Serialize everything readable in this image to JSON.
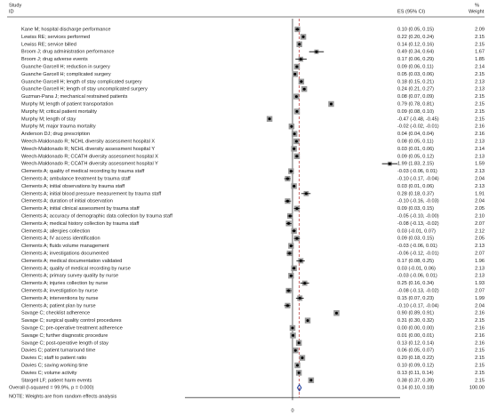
{
  "chart_data": {
    "type": "forest",
    "header": {
      "study": "Study",
      "id": "ID",
      "es": "ES (95% CI)",
      "pct": "%",
      "weight": "Weight"
    },
    "xlim": [
      -2.2,
      2.2
    ],
    "xticks": [
      0
    ],
    "null_color": "#000000",
    "overall_line_color": "#b22222",
    "box_color": "#9a9a9a",
    "diamond_color": "#1f3fa0",
    "rows": [
      {
        "study": "Kane M; hospital discharge performance",
        "es": 0.1,
        "lo": 0.05,
        "hi": 0.15,
        "w": 2.09,
        "es_label": "0.10 (0.05, 0.15)",
        "w_label": "2.09"
      },
      {
        "study": "Lewiss RE; services performed",
        "es": 0.22,
        "lo": 0.2,
        "hi": 0.24,
        "w": 2.15,
        "es_label": "0.22 (0.20, 0.24)",
        "w_label": "2.15"
      },
      {
        "study": "Lewiss RE; service billed",
        "es": 0.14,
        "lo": 0.12,
        "hi": 0.16,
        "w": 2.15,
        "es_label": "0.14 (0.12, 0.16)",
        "w_label": "2.15"
      },
      {
        "study": "Broom J; drug administration performance",
        "es": 0.49,
        "lo": 0.34,
        "hi": 0.64,
        "w": 1.67,
        "es_label": "0.49 (0.34, 0.64)",
        "w_label": "1.67"
      },
      {
        "study": "Broom J; drug adverse events",
        "es": 0.17,
        "lo": 0.06,
        "hi": 0.29,
        "w": 1.85,
        "es_label": "0.17 (0.06, 0.29)",
        "w_label": "1.85"
      },
      {
        "study": "Guanche Garcell H; reduction in surgery",
        "es": 0.09,
        "lo": 0.06,
        "hi": 0.11,
        "w": 2.14,
        "es_label": "0.09 (0.06, 0.11)",
        "w_label": "2.14"
      },
      {
        "study": "Guanche Garcell H; complicated surgery",
        "es": 0.05,
        "lo": 0.03,
        "hi": 0.06,
        "w": 2.15,
        "es_label": "0.05 (0.03, 0.06)",
        "w_label": "2.15"
      },
      {
        "study": "Guanche Garcell H; length of stay complicated surgery",
        "es": 0.18,
        "lo": 0.15,
        "hi": 0.21,
        "w": 2.13,
        "es_label": "0.18 (0.15, 0.21)",
        "w_label": "2.13"
      },
      {
        "study": "Guanche Garcell H; length of stay uncomplicated surgery",
        "es": 0.24,
        "lo": 0.21,
        "hi": 0.27,
        "w": 2.13,
        "es_label": "0.24 (0.21, 0.27)",
        "w_label": "2.13"
      },
      {
        "study": "Guzman-Pana J; mechanical restrained patients",
        "es": 0.08,
        "lo": 0.07,
        "hi": 0.09,
        "w": 2.15,
        "es_label": "0.08 (0.07, 0.09)",
        "w_label": "2.15"
      },
      {
        "study": "Murphy M; length of patient transportation",
        "es": 0.79,
        "lo": 0.78,
        "hi": 0.81,
        "w": 2.15,
        "es_label": "0.79 (0.78, 0.81)",
        "w_label": "2.15"
      },
      {
        "study": "Murphy M; critical patient mortality",
        "es": 0.09,
        "lo": 0.08,
        "hi": 0.1,
        "w": 2.15,
        "es_label": "0.09 (0.08, 0.10)",
        "w_label": "2.15"
      },
      {
        "study": "Murphy M; length of stay",
        "es": -0.47,
        "lo": -0.48,
        "hi": -0.45,
        "w": 2.15,
        "es_label": "-0.47 (-0.48, -0.45)",
        "w_label": "2.15"
      },
      {
        "study": "Murphy M; major trauma mortality",
        "es": -0.02,
        "lo": -0.02,
        "hi": -0.01,
        "w": 2.16,
        "es_label": "-0.02 (-0.02, -0.01)",
        "w_label": "2.16"
      },
      {
        "study": "Anderson DJ; drug prescription",
        "es": 0.04,
        "lo": 0.04,
        "hi": 0.04,
        "w": 2.16,
        "es_label": "0.04 (0.04, 0.04)",
        "w_label": "2.16"
      },
      {
        "study": "Weech-Maldonado R; NCHL diversity assessment hospital X",
        "es": 0.08,
        "lo": 0.05,
        "hi": 0.11,
        "w": 2.13,
        "es_label": "0.08 (0.05, 0.11)",
        "w_label": "2.13"
      },
      {
        "study": "Weech-Maldonado R; NCHL diversity assessment hospital Y",
        "es": 0.03,
        "lo": 0.01,
        "hi": 0.06,
        "w": 2.14,
        "es_label": "0.03 (0.01, 0.06)",
        "w_label": "2.14"
      },
      {
        "study": "Weech-Maldonado R; CCATH diversity assessment hospital X",
        "es": 0.09,
        "lo": 0.05,
        "hi": 0.12,
        "w": 2.13,
        "es_label": "0.09 (0.05, 0.12)",
        "w_label": "2.13"
      },
      {
        "study": "Weech-Maldonado R; CCATH diversity assessment hospital Y",
        "es": 1.99,
        "lo": 1.83,
        "hi": 2.15,
        "w": 1.59,
        "es_label": "1.99 (1.83, 2.15)",
        "w_label": "1.59"
      },
      {
        "study": "Clements A; quality of medical recording by trauma staff",
        "es": -0.03,
        "lo": -0.06,
        "hi": 0.01,
        "w": 2.13,
        "es_label": "-0.03 (-0.06, 0.01)",
        "w_label": "2.13"
      },
      {
        "study": "Clements A; ambulance treatment by trauma staff",
        "es": -0.1,
        "lo": -0.17,
        "hi": -0.04,
        "w": 2.04,
        "es_label": "-0.10 (-0.17, -0.04)",
        "w_label": "2.04"
      },
      {
        "study": "Clements A; initial observations by trauma staff",
        "es": 0.03,
        "lo": 0.01,
        "hi": 0.06,
        "w": 2.13,
        "es_label": "0.03 (0.01, 0.06)",
        "w_label": "2.13"
      },
      {
        "study": "Clements A; initial blood pressure measurement by trauma staff",
        "es": 0.28,
        "lo": 0.18,
        "hi": 0.37,
        "w": 1.91,
        "es_label": "0.28 (0.18, 0.37)",
        "w_label": "1.91"
      },
      {
        "study": "Clements A; duration of initial observation",
        "es": -0.1,
        "lo": -0.16,
        "hi": -0.03,
        "w": 2.04,
        "es_label": "-0.10 (-0.16, -0.03)",
        "w_label": "2.04"
      },
      {
        "study": "Clements A; initial clinical assessment by trauma staff",
        "es": 0.09,
        "lo": 0.03,
        "hi": 0.15,
        "w": 2.05,
        "es_label": "0.09 (0.03, 0.15)",
        "w_label": "2.05"
      },
      {
        "study": "Clements A; accuracy of demographic data collection by trauma staff",
        "es": -0.05,
        "lo": -0.1,
        "hi": -0.0,
        "w": 2.1,
        "es_label": "-0.05 (-0.10, -0.00)",
        "w_label": "2.10"
      },
      {
        "study": "Clements A; medical history collection by trauma staff",
        "es": -0.08,
        "lo": -0.13,
        "hi": -0.02,
        "w": 2.07,
        "es_label": "-0.08 (-0.13, -0.02)",
        "w_label": "2.07"
      },
      {
        "study": "Clements A; allergies collection",
        "es": 0.03,
        "lo": -0.01,
        "hi": 0.07,
        "w": 2.12,
        "es_label": "0.03 (-0.01, 0.07)",
        "w_label": "2.12"
      },
      {
        "study": "Clements A; IV access identification",
        "es": 0.09,
        "lo": 0.03,
        "hi": 0.15,
        "w": 2.05,
        "es_label": "0.09 (0.03, 0.15)",
        "w_label": "2.05"
      },
      {
        "study": "Clements A; fluids volume management",
        "es": -0.03,
        "lo": -0.06,
        "hi": 0.01,
        "w": 2.13,
        "es_label": "-0.03 (-0.06, 0.01)",
        "w_label": "2.13"
      },
      {
        "study": "Clements A; investigations documented",
        "es": -0.06,
        "lo": -0.12,
        "hi": -0.01,
        "w": 2.07,
        "es_label": "-0.06 (-0.12, -0.01)",
        "w_label": "2.07"
      },
      {
        "study": "Clements A; medical documentation validated",
        "es": 0.17,
        "lo": 0.08,
        "hi": 0.25,
        "w": 1.96,
        "es_label": "0.17 (0.08, 0.25)",
        "w_label": "1.96"
      },
      {
        "study": "Clements A; quality of medical recording by nurse",
        "es": 0.03,
        "lo": -0.01,
        "hi": 0.06,
        "w": 2.13,
        "es_label": "0.03 (-0.01, 0.06)",
        "w_label": "2.13"
      },
      {
        "study": "Clements A; primary survey quality by nurse",
        "es": -0.03,
        "lo": -0.06,
        "hi": 0.01,
        "w": 2.13,
        "es_label": "-0.03 (-0.06, 0.01)",
        "w_label": "2.13"
      },
      {
        "study": "Clements A; injuries collection by nurse",
        "es": 0.25,
        "lo": 0.16,
        "hi": 0.34,
        "w": 1.93,
        "es_label": "0.25 (0.16, 0.34)",
        "w_label": "1.93"
      },
      {
        "study": "Clements A; investigation by nurse",
        "es": -0.08,
        "lo": -0.13,
        "hi": -0.02,
        "w": 2.07,
        "es_label": "-0.08 (-0.13, -0.02)",
        "w_label": "2.07"
      },
      {
        "study": "Clements A; interventions by nurse",
        "es": 0.15,
        "lo": 0.07,
        "hi": 0.23,
        "w": 1.99,
        "es_label": "0.15 (0.07, 0.23)",
        "w_label": "1.99"
      },
      {
        "study": "Clements A; patient plan by nurse",
        "es": -0.1,
        "lo": -0.17,
        "hi": -0.04,
        "w": 2.04,
        "es_label": "-0.10 (-0.17, -0.04)",
        "w_label": "2.04"
      },
      {
        "study": "Savage C; checklist adherence",
        "es": 0.9,
        "lo": 0.89,
        "hi": 0.91,
        "w": 2.16,
        "es_label": "0.90 (0.89, 0.91)",
        "w_label": "2.16"
      },
      {
        "study": "Savage C; surgical quality control procedures",
        "es": 0.31,
        "lo": 0.3,
        "hi": 0.32,
        "w": 2.15,
        "es_label": "0.31 (0.30, 0.32)",
        "w_label": "2.15"
      },
      {
        "study": "Savage C; pre-operative treatment adherence",
        "es": 0.0,
        "lo": 0.0,
        "hi": 0.0,
        "w": 2.16,
        "es_label": "0.00 (0.00, 0.00)",
        "w_label": "2.16"
      },
      {
        "study": "Savage C; further diagnostic procedure",
        "es": 0.01,
        "lo": 0.0,
        "hi": 0.01,
        "w": 2.16,
        "es_label": "0.01 (0.00, 0.01)",
        "w_label": "2.16"
      },
      {
        "study": "Savage C; post-operative length of stay",
        "es": 0.13,
        "lo": 0.12,
        "hi": 0.14,
        "w": 2.16,
        "es_label": "0.13 (0.12, 0.14)",
        "w_label": "2.16"
      },
      {
        "study": "Davies C; patient turnaround time",
        "es": 0.06,
        "lo": 0.05,
        "hi": 0.07,
        "w": 2.15,
        "es_label": "0.06 (0.05, 0.07)",
        "w_label": "2.15"
      },
      {
        "study": "Davies C; staff to patient ratio",
        "es": 0.2,
        "lo": 0.18,
        "hi": 0.22,
        "w": 2.15,
        "es_label": "0.20 (0.18, 0.22)",
        "w_label": "2.15"
      },
      {
        "study": "Davies C; saving working time",
        "es": 0.1,
        "lo": 0.09,
        "hi": 0.12,
        "w": 2.15,
        "es_label": "0.10 (0.09, 0.12)",
        "w_label": "2.15"
      },
      {
        "study": "Davies C; volume activity",
        "es": 0.13,
        "lo": 0.11,
        "hi": 0.14,
        "w": 2.15,
        "es_label": "0.13 (0.11, 0.14)",
        "w_label": "2.15"
      },
      {
        "study": "Stargell LF; patient harm events",
        "es": 0.38,
        "lo": 0.37,
        "hi": 0.39,
        "w": 2.15,
        "es_label": "0.38 (0.37, 0.39)",
        "w_label": "2.15"
      }
    ],
    "overall": {
      "study": "Overall  (I-squared = 99.9%, p = 0.000)",
      "es": 0.14,
      "lo": 0.1,
      "hi": 0.18,
      "w": 100.0,
      "es_label": "0.14 (0.10, 0.18)",
      "w_label": "100.00"
    },
    "note": "NOTE: Weights are from random effects analysis"
  }
}
